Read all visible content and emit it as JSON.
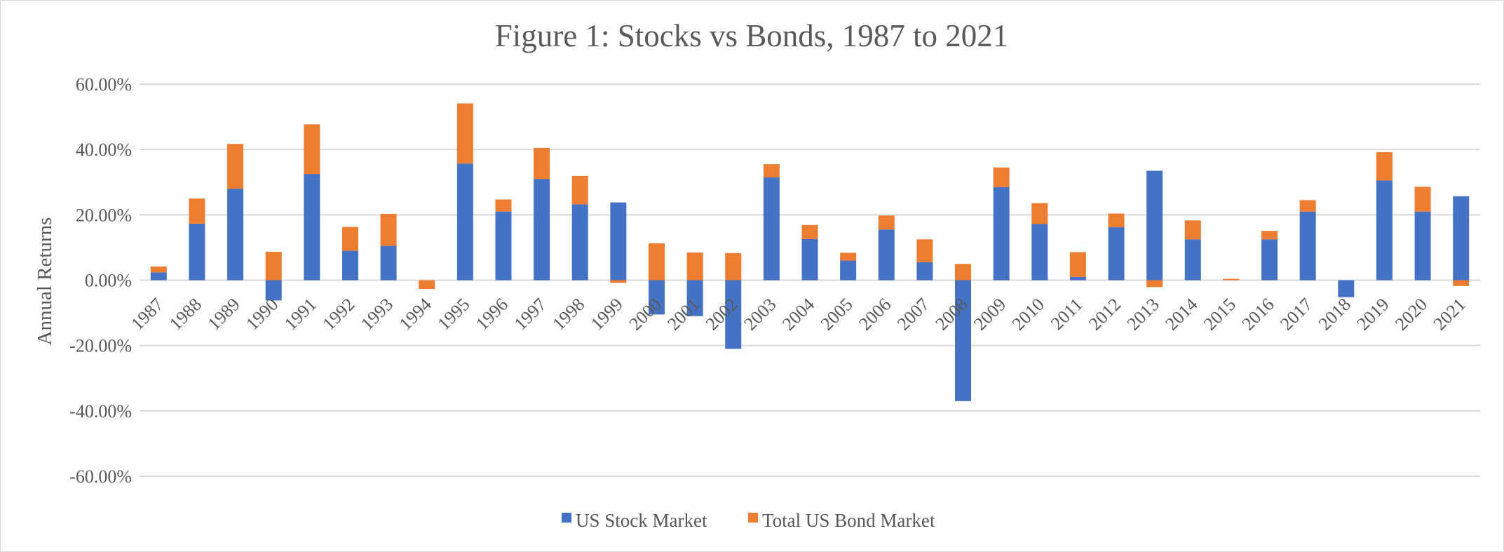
{
  "chart_data": {
    "type": "bar",
    "stacked": true,
    "title": "Figure 1: Stocks vs Bonds, 1987 to 2021",
    "xlabel": "",
    "ylabel": "Annual Returns",
    "ylim": [
      -0.6,
      0.6
    ],
    "y_ticks": [
      0.6,
      0.4,
      0.2,
      0.0,
      -0.2,
      -0.4,
      -0.6
    ],
    "y_tick_labels": [
      "60.00%",
      "40.00%",
      "20.00%",
      "0.00%",
      "-20.00%",
      "-40.00%",
      "-60.00%"
    ],
    "grid": true,
    "legend_position": "bottom",
    "categories": [
      "1987",
      "1988",
      "1989",
      "1990",
      "1991",
      "1992",
      "1993",
      "1994",
      "1995",
      "1996",
      "1997",
      "1998",
      "1999",
      "2000",
      "2001",
      "2002",
      "2003",
      "2004",
      "2005",
      "2006",
      "2007",
      "2008",
      "2009",
      "2010",
      "2011",
      "2012",
      "2013",
      "2014",
      "2015",
      "2016",
      "2017",
      "2018",
      "2019",
      "2020",
      "2021"
    ],
    "series": [
      {
        "name": "US Stock Market",
        "color": "#4472c4",
        "values": [
          0.024,
          0.173,
          0.28,
          -0.062,
          0.325,
          0.09,
          0.105,
          0.0,
          0.357,
          0.21,
          0.31,
          0.232,
          0.238,
          -0.105,
          -0.11,
          -0.21,
          0.315,
          0.126,
          0.06,
          0.155,
          0.055,
          -0.37,
          0.285,
          0.172,
          0.01,
          0.162,
          0.335,
          0.125,
          0.0,
          0.125,
          0.21,
          -0.052,
          0.305,
          0.21,
          0.257
        ]
      },
      {
        "name": "Total US Bond Market",
        "color": "#ed7d31",
        "values": [
          0.018,
          0.077,
          0.137,
          0.087,
          0.152,
          0.073,
          0.098,
          -0.027,
          0.184,
          0.037,
          0.095,
          0.087,
          -0.008,
          0.113,
          0.085,
          0.083,
          0.04,
          0.043,
          0.024,
          0.043,
          0.07,
          0.05,
          0.06,
          0.064,
          0.076,
          0.042,
          -0.021,
          0.058,
          0.004,
          0.026,
          0.035,
          0.0,
          0.087,
          0.076,
          -0.018
        ]
      }
    ]
  }
}
